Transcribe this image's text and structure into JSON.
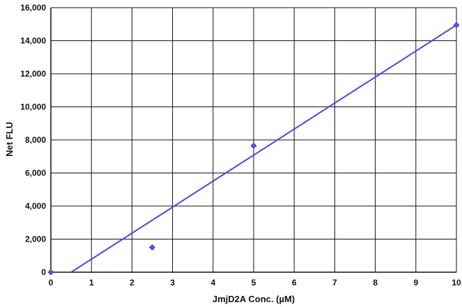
{
  "chart_data": {
    "type": "scatter",
    "title": "",
    "xlabel": "JmjD2A Conc. (µM)",
    "ylabel": "Net FLU",
    "xlim": [
      0,
      10
    ],
    "ylim": [
      0,
      16000
    ],
    "x_ticks": [
      0,
      1,
      2,
      3,
      4,
      5,
      6,
      7,
      8,
      9,
      10
    ],
    "y_ticks": [
      0,
      2000,
      4000,
      6000,
      8000,
      10000,
      12000,
      14000,
      16000
    ],
    "x_tick_labels": [
      "0",
      "1",
      "2",
      "3",
      "4",
      "5",
      "6",
      "7",
      "8",
      "9",
      "10"
    ],
    "y_tick_labels": [
      "0",
      "2,000",
      "4,000",
      "6,000",
      "8,000",
      "10,000",
      "12,000",
      "14,000",
      "16,000"
    ],
    "grid": true,
    "series": [
      {
        "x": [
          0,
          2.5,
          5,
          10
        ],
        "y": [
          0,
          1500,
          7650,
          14950
        ]
      }
    ],
    "trendline": {
      "x": [
        0.5,
        10
      ],
      "y": [
        0,
        14950
      ]
    },
    "colors": {
      "points": "#6a4ee0",
      "trendline": "#5b3ce6",
      "grid": "#111111"
    }
  }
}
